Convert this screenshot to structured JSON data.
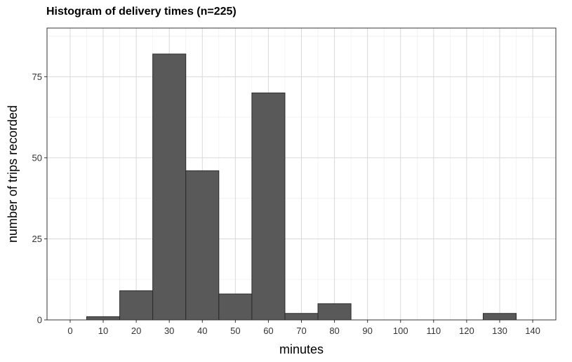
{
  "chart_data": {
    "type": "bar",
    "title": "Histogram of delivery times (n=225)",
    "xlabel": "minutes",
    "ylabel": "number of trips recorded",
    "bin_width": 10,
    "bins": [
      {
        "center": 10,
        "count": 1
      },
      {
        "center": 20,
        "count": 9
      },
      {
        "center": 30,
        "count": 82
      },
      {
        "center": 40,
        "count": 46
      },
      {
        "center": 50,
        "count": 8
      },
      {
        "center": 60,
        "count": 70
      },
      {
        "center": 70,
        "count": 2
      },
      {
        "center": 80,
        "count": 5
      },
      {
        "center": 130,
        "count": 2
      }
    ],
    "xlim": [
      -7,
      147
    ],
    "ylim": [
      0,
      90
    ],
    "x_ticks": [
      0,
      10,
      20,
      30,
      40,
      50,
      60,
      70,
      80,
      90,
      100,
      110,
      120,
      130,
      140
    ],
    "y_ticks": [
      0,
      25,
      50,
      75
    ],
    "grid": true,
    "bar_color": "#595959",
    "panel_border_color": "#333333",
    "grid_color": "#d9d9d9"
  }
}
